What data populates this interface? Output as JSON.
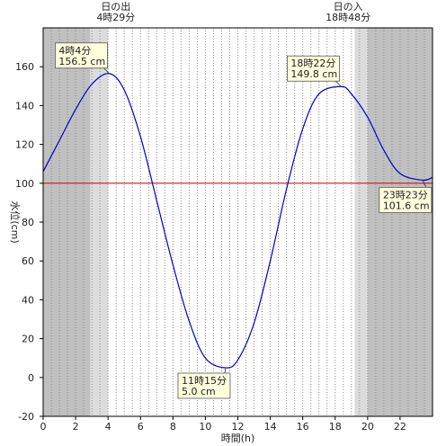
{
  "chart_data": {
    "type": "line",
    "xlabel": "時間(h)",
    "ylabel": "水位(cm)",
    "xlim": [
      0,
      24
    ],
    "ylim": [
      -20,
      180
    ],
    "x_ticks": [
      0,
      2,
      4,
      6,
      8,
      10,
      12,
      14,
      16,
      18,
      20,
      22
    ],
    "y_ticks": [
      -20,
      0,
      20,
      40,
      60,
      80,
      100,
      120,
      140,
      160
    ],
    "grid": "vertical dotted every 0.5h",
    "reference_line": {
      "y": 100,
      "color": "#d40000"
    },
    "series": [
      {
        "color": "#0000cc",
        "x": [
          0,
          1,
          2,
          3,
          4.07,
          5,
          6,
          7,
          8,
          9,
          10,
          11.25,
          12,
          13,
          14,
          15,
          16,
          17,
          18.37,
          19,
          20,
          21,
          22,
          23.38,
          24
        ],
        "values": [
          106,
          122,
          138,
          151,
          156.5,
          148,
          124,
          91,
          58,
          29,
          10,
          5.0,
          9,
          28,
          60,
          97,
          128,
          146,
          149.8,
          146,
          134,
          117,
          105,
          101.6,
          103
        ]
      }
    ],
    "shading": {
      "colors": {
        "night": "#c0c0c0",
        "twilight": "#dcdcdc",
        "day": "#ffffff"
      },
      "bands": [
        {
          "from": 0,
          "to": 2.9,
          "kind": "night"
        },
        {
          "from": 2.9,
          "to": 4.0,
          "kind": "twilight"
        },
        {
          "from": 19.2,
          "to": 20.0,
          "kind": "twilight"
        },
        {
          "from": 20.0,
          "to": 24,
          "kind": "night"
        }
      ]
    },
    "header_labels": [
      {
        "x": 4.48,
        "line1": "日の出",
        "line2": "4時29分"
      },
      {
        "x": 18.8,
        "line1": "日の入",
        "line2": "18時48分"
      }
    ],
    "annotations": [
      {
        "x": 4.07,
        "y": 156.5,
        "line1": "4時4分",
        "line2": "156.5 cm",
        "pos": "above-left"
      },
      {
        "x": 11.25,
        "y": 5.0,
        "line1": "11時15分",
        "line2": "5.0 cm",
        "pos": "below-left"
      },
      {
        "x": 18.37,
        "y": 149.8,
        "line1": "18時22分",
        "line2": "149.8 cm",
        "pos": "above-left"
      },
      {
        "x": 23.38,
        "y": 101.6,
        "line1": "23時23分",
        "line2": "101.6 cm",
        "pos": "below-left"
      }
    ]
  }
}
